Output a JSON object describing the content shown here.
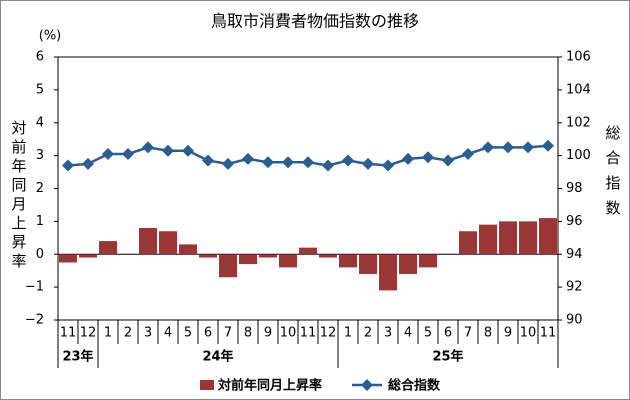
{
  "chart_data": {
    "type": "bar_line",
    "title": "鳥取市消費者物価指数の推移",
    "y_unit": "(%)",
    "y_label": "対前年同月上昇率",
    "y2_label": "総合指数",
    "categories": [
      "11",
      "12",
      "1",
      "2",
      "3",
      "4",
      "5",
      "6",
      "7",
      "8",
      "9",
      "10",
      "11",
      "12",
      "1",
      "2",
      "3",
      "4",
      "5",
      "6",
      "7",
      "8",
      "9",
      "10",
      "11"
    ],
    "groups": [
      "23年",
      "24年",
      "25年"
    ],
    "series": [
      {
        "name": "対前年同月上昇率",
        "type": "bar",
        "color": "#983735",
        "values": [
          -0.25,
          -0.1,
          0.4,
          0,
          0.8,
          0.7,
          0.3,
          -0.1,
          -0.7,
          -0.3,
          -0.1,
          -0.4,
          0.2,
          -0.1,
          -0.4,
          -0.6,
          -1.1,
          -0.6,
          -0.4,
          0,
          0.7,
          0.9,
          1.0,
          1.0,
          1.1
        ]
      },
      {
        "name": "総合指数",
        "type": "line",
        "axis": "y2",
        "color": "#2c5d8f",
        "values": [
          99.4,
          99.5,
          100.1,
          100.1,
          100.5,
          100.3,
          100.3,
          99.7,
          99.5,
          99.8,
          99.6,
          99.6,
          99.6,
          99.4,
          99.7,
          99.5,
          99.4,
          99.8,
          99.9,
          99.7,
          100.1,
          100.5,
          100.5,
          100.5,
          100.6
        ]
      }
    ],
    "ylim": [
      -2,
      6
    ],
    "yticks": [
      {
        "value": -2,
        "label": "−2"
      },
      {
        "value": -1,
        "label": "−1"
      },
      0,
      1,
      2,
      3,
      4,
      5,
      6
    ],
    "y2lim": [
      90,
      106
    ],
    "y2ticks": [
      90,
      92,
      94,
      96,
      98,
      100,
      102,
      104,
      106
    ],
    "grid": false
  }
}
